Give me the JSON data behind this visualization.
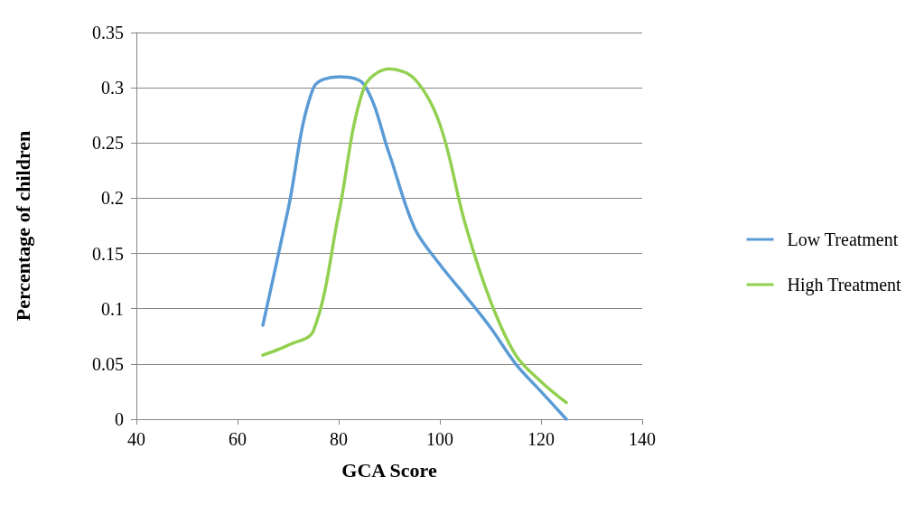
{
  "chart_data": {
    "type": "line",
    "xlabel": "GCA Score",
    "ylabel": "Percentage of children",
    "xlim": [
      40,
      140
    ],
    "xticks": [
      40,
      60,
      80,
      100,
      120,
      140
    ],
    "ylim": [
      0,
      0.35
    ],
    "yticks": [
      0,
      0.05,
      0.1,
      0.15,
      0.2,
      0.25,
      0.3,
      0.35
    ],
    "grid": "y",
    "legend": "right",
    "marker": "none",
    "line_style": "solid",
    "x": [
      65,
      70,
      75,
      80,
      85,
      90,
      95,
      100,
      105,
      110,
      115,
      120,
      125
    ],
    "series": [
      {
        "name": "Low Treatment",
        "color": "#5b9bd5",
        "values": [
          0.085,
          0.19,
          0.3,
          0.31,
          0.303,
          0.24,
          0.173,
          0.14,
          0.112,
          0.083,
          0.05,
          0.025,
          0
        ]
      },
      {
        "name": "High Treatment",
        "color": "#92d050",
        "values": [
          0.058,
          0.067,
          0.08,
          0.186,
          0.3,
          0.317,
          0.308,
          0.267,
          0.177,
          0.107,
          0.058,
          0.034,
          0.015
        ]
      }
    ]
  }
}
